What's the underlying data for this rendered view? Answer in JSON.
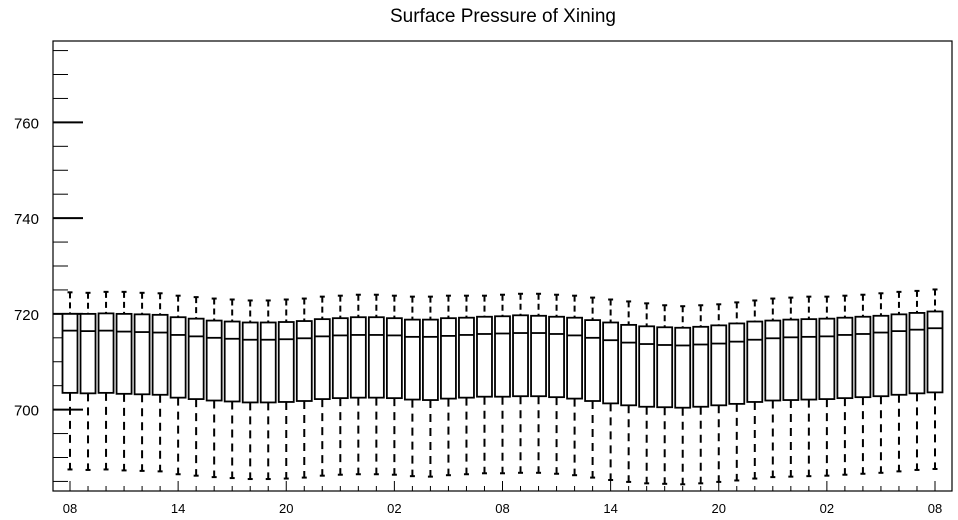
{
  "chart_data": {
    "type": "box",
    "title": "Surface Pressure of Xining",
    "xlabel": "",
    "ylabel": "",
    "ylim": [
      683,
      777
    ],
    "y_major_ticks": [
      700,
      720,
      740,
      760
    ],
    "x_tick_labels": [
      "08",
      "14",
      "20",
      "02",
      "08",
      "14",
      "20",
      "02",
      "08"
    ],
    "grid": false,
    "legend": "none",
    "box_count": 49,
    "series": [
      {
        "whisker_high": [
          724.5,
          724.4,
          724.6,
          724.6,
          724.4,
          724.3,
          723.8,
          723.5,
          723.2,
          723.0,
          722.8,
          722.8,
          723.0,
          723.2,
          723.6,
          723.8,
          724.0,
          724.0,
          723.8,
          723.6,
          723.6,
          723.8,
          723.8,
          723.8,
          724.0,
          724.2,
          724.2,
          724.0,
          723.8,
          723.4,
          723.0,
          722.6,
          722.2,
          721.8,
          721.6,
          721.8,
          722.0,
          722.4,
          722.8,
          723.2,
          723.4,
          723.6,
          723.6,
          723.8,
          724.0,
          724.3,
          724.6,
          724.8,
          725.1
        ],
        "q3": [
          720.0,
          720.0,
          720.1,
          720.0,
          719.9,
          719.8,
          719.3,
          719.0,
          718.6,
          718.4,
          718.2,
          718.2,
          718.3,
          718.5,
          718.9,
          719.1,
          719.3,
          719.3,
          719.1,
          718.8,
          718.8,
          719.1,
          719.2,
          719.4,
          719.5,
          719.7,
          719.6,
          719.4,
          719.2,
          718.7,
          718.2,
          717.7,
          717.4,
          717.2,
          717.1,
          717.3,
          717.6,
          718.0,
          718.4,
          718.6,
          718.8,
          718.9,
          719.0,
          719.2,
          719.4,
          719.6,
          719.9,
          720.2,
          720.5
        ],
        "median": [
          716.5,
          716.4,
          716.5,
          716.3,
          716.2,
          716.1,
          715.6,
          715.3,
          715.0,
          714.8,
          714.6,
          714.6,
          714.7,
          714.9,
          715.3,
          715.5,
          715.6,
          715.6,
          715.5,
          715.2,
          715.2,
          715.4,
          715.6,
          715.8,
          715.9,
          716.0,
          716.0,
          715.8,
          715.5,
          715.0,
          714.5,
          714.0,
          713.7,
          713.5,
          713.4,
          713.6,
          713.8,
          714.2,
          714.6,
          714.9,
          715.1,
          715.2,
          715.3,
          715.6,
          715.8,
          716.1,
          716.4,
          716.7,
          717.0
        ],
        "q1": [
          703.5,
          703.4,
          703.5,
          703.3,
          703.2,
          703.1,
          702.5,
          702.2,
          701.9,
          701.7,
          701.5,
          701.5,
          701.6,
          701.8,
          702.2,
          702.4,
          702.5,
          702.5,
          702.4,
          702.1,
          702.0,
          702.3,
          702.5,
          702.7,
          702.7,
          702.8,
          702.8,
          702.6,
          702.3,
          701.8,
          701.3,
          700.9,
          700.6,
          700.5,
          700.4,
          700.6,
          700.9,
          701.2,
          701.6,
          701.9,
          702.0,
          702.1,
          702.2,
          702.4,
          702.6,
          702.8,
          703.1,
          703.4,
          703.6
        ],
        "whisker_low": [
          687.5,
          687.4,
          687.5,
          687.3,
          687.2,
          687.1,
          686.5,
          686.2,
          685.9,
          685.7,
          685.5,
          685.5,
          685.6,
          685.8,
          686.2,
          686.4,
          686.5,
          686.5,
          686.4,
          686.1,
          686.0,
          686.3,
          686.5,
          686.7,
          686.7,
          686.8,
          686.8,
          686.6,
          686.3,
          685.8,
          685.3,
          684.9,
          684.6,
          684.5,
          684.4,
          684.6,
          684.9,
          685.2,
          685.6,
          685.9,
          686.0,
          686.1,
          686.2,
          686.4,
          686.6,
          686.8,
          687.1,
          687.4,
          687.6
        ]
      }
    ]
  }
}
